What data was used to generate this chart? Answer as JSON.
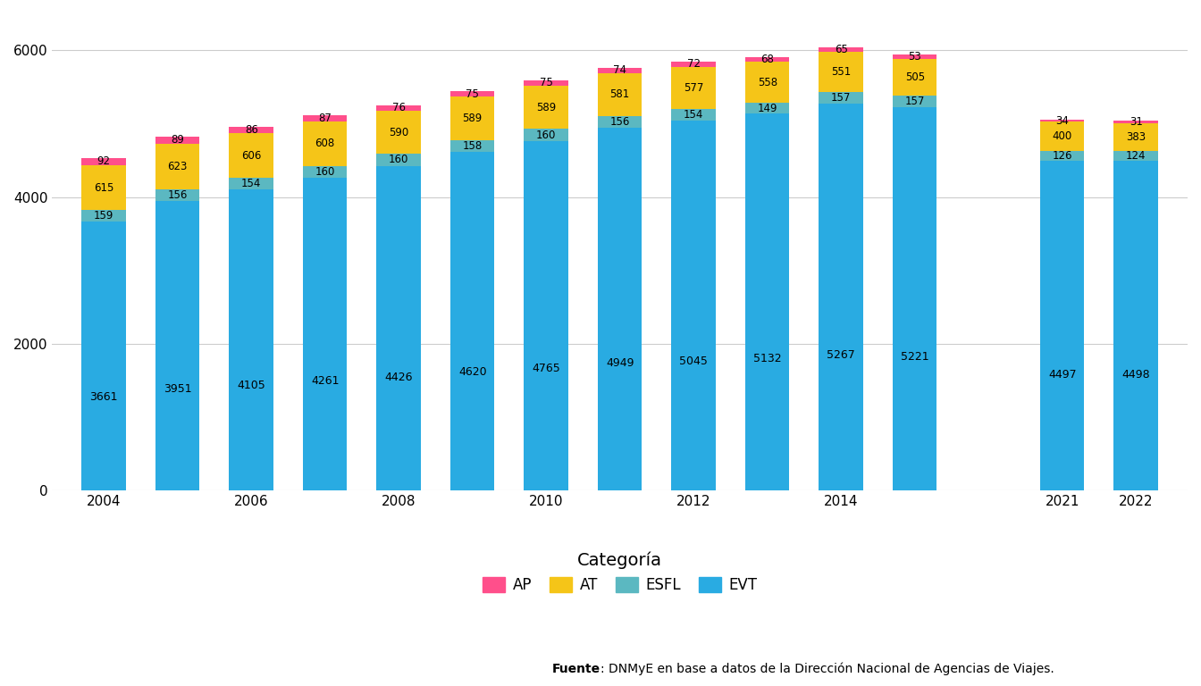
{
  "EVT": [
    3661,
    3951,
    4105,
    4261,
    4426,
    4620,
    4765,
    4949,
    5045,
    5132,
    5267,
    5221,
    4497,
    4498
  ],
  "ESFL": [
    159,
    156,
    154,
    160,
    160,
    158,
    160,
    156,
    154,
    149,
    157,
    157,
    126,
    124
  ],
  "AT": [
    615,
    623,
    606,
    608,
    590,
    589,
    589,
    581,
    577,
    558,
    551,
    505,
    400,
    383
  ],
  "AP": [
    92,
    89,
    86,
    87,
    76,
    75,
    75,
    74,
    72,
    68,
    65,
    53,
    34,
    31
  ],
  "colors": {
    "EVT": "#29ABE2",
    "ESFL": "#5BB8C1",
    "AT": "#F5C518",
    "AP": "#FF4F8B"
  },
  "bar_width": 0.6,
  "ylim": [
    0,
    6500
  ],
  "yticks": [
    0,
    2000,
    4000,
    6000
  ],
  "background_color": "#FFFFFF",
  "grid_color": "#CCCCCC",
  "legend_title": "Categoría",
  "legend_labels": [
    "AP",
    "AT",
    "ESFL",
    "EVT"
  ],
  "tick_fontsize": 11,
  "label_fontsize": 8.5,
  "source_bold": "Fuente",
  "source_rest": ": DNMyE en base a datos de la Dirección Nacional de Agencias de Viajes.",
  "x_tick_map": {
    "0": "2004",
    "2": "2006",
    "4": "2008",
    "6": "2010",
    "8": "2012",
    "10": "2014",
    "13": "2021",
    "14": "2022"
  }
}
